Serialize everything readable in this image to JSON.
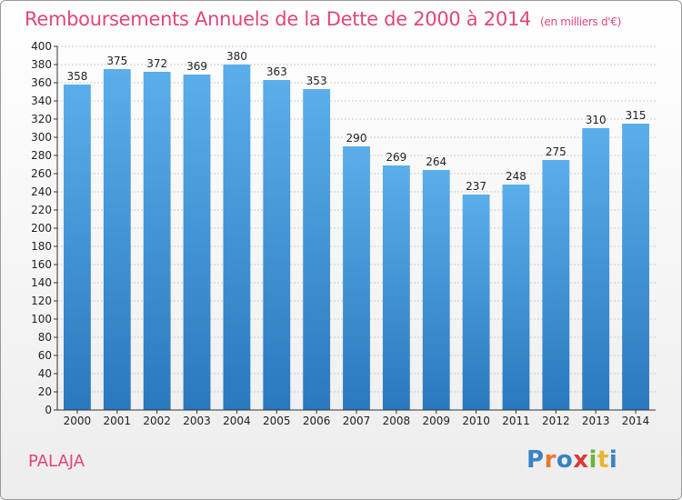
{
  "chart_data": {
    "type": "bar",
    "title": "Remboursements Annuels de la Dette de 2000 à 2014",
    "subtitle": "(en milliers d'€)",
    "categories": [
      "2000",
      "2001",
      "2002",
      "2003",
      "2004",
      "2005",
      "2006",
      "2007",
      "2008",
      "2009",
      "2010",
      "2011",
      "2012",
      "2013",
      "2014"
    ],
    "values": [
      358,
      375,
      372,
      369,
      380,
      363,
      353,
      290,
      269,
      264,
      237,
      248,
      275,
      310,
      315
    ],
    "ylim": [
      0,
      400
    ],
    "ytick_step": 20,
    "grid": true,
    "bar_color_top": "#5aaeea",
    "bar_color_bottom": "#2a78bd"
  },
  "commune": "PALAJA",
  "logo": {
    "letters": [
      "P",
      "r",
      "o",
      "x",
      "i",
      "t",
      "i"
    ],
    "colors": [
      "#3b82c4",
      "#e8792d",
      "#3b82c4",
      "#d93a3a",
      "#6db33f",
      "#e8b62d",
      "#3b82c4"
    ]
  },
  "title_color": "#e0467a"
}
